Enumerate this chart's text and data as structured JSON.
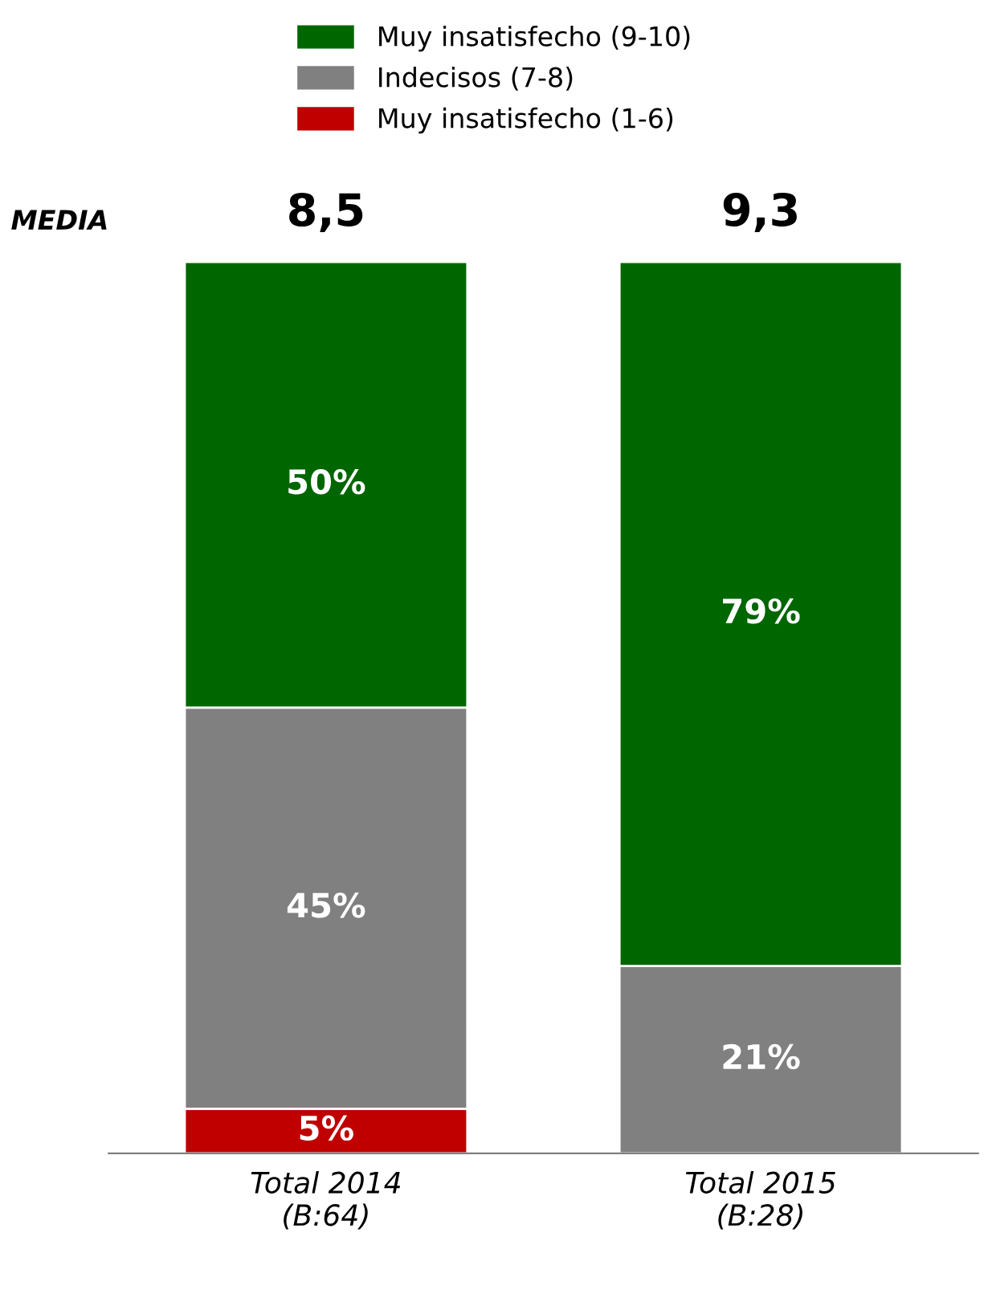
{
  "chart_data": {
    "type": "bar",
    "stacked": true,
    "categories": [
      "Total 2014\n(B:64)",
      "Total 2015\n(B:28)"
    ],
    "series": [
      {
        "name": "Muy insatisfecho (1-6)",
        "color": "#c00000",
        "values": [
          5,
          null
        ],
        "value_labels": [
          "5%",
          null
        ]
      },
      {
        "name": "Indecisos (7-8)",
        "color": "#808080",
        "values": [
          45,
          21
        ],
        "value_labels": [
          "45%",
          "21%"
        ]
      },
      {
        "name": "Muy insatisfecho (9-10)",
        "color": "#006600",
        "values": [
          50,
          79
        ],
        "value_labels": [
          "50%",
          "79%"
        ]
      }
    ],
    "annotations": [
      "MEDIA",
      "8,5",
      "9,3"
    ],
    "legend": "top",
    "grid": false
  }
}
